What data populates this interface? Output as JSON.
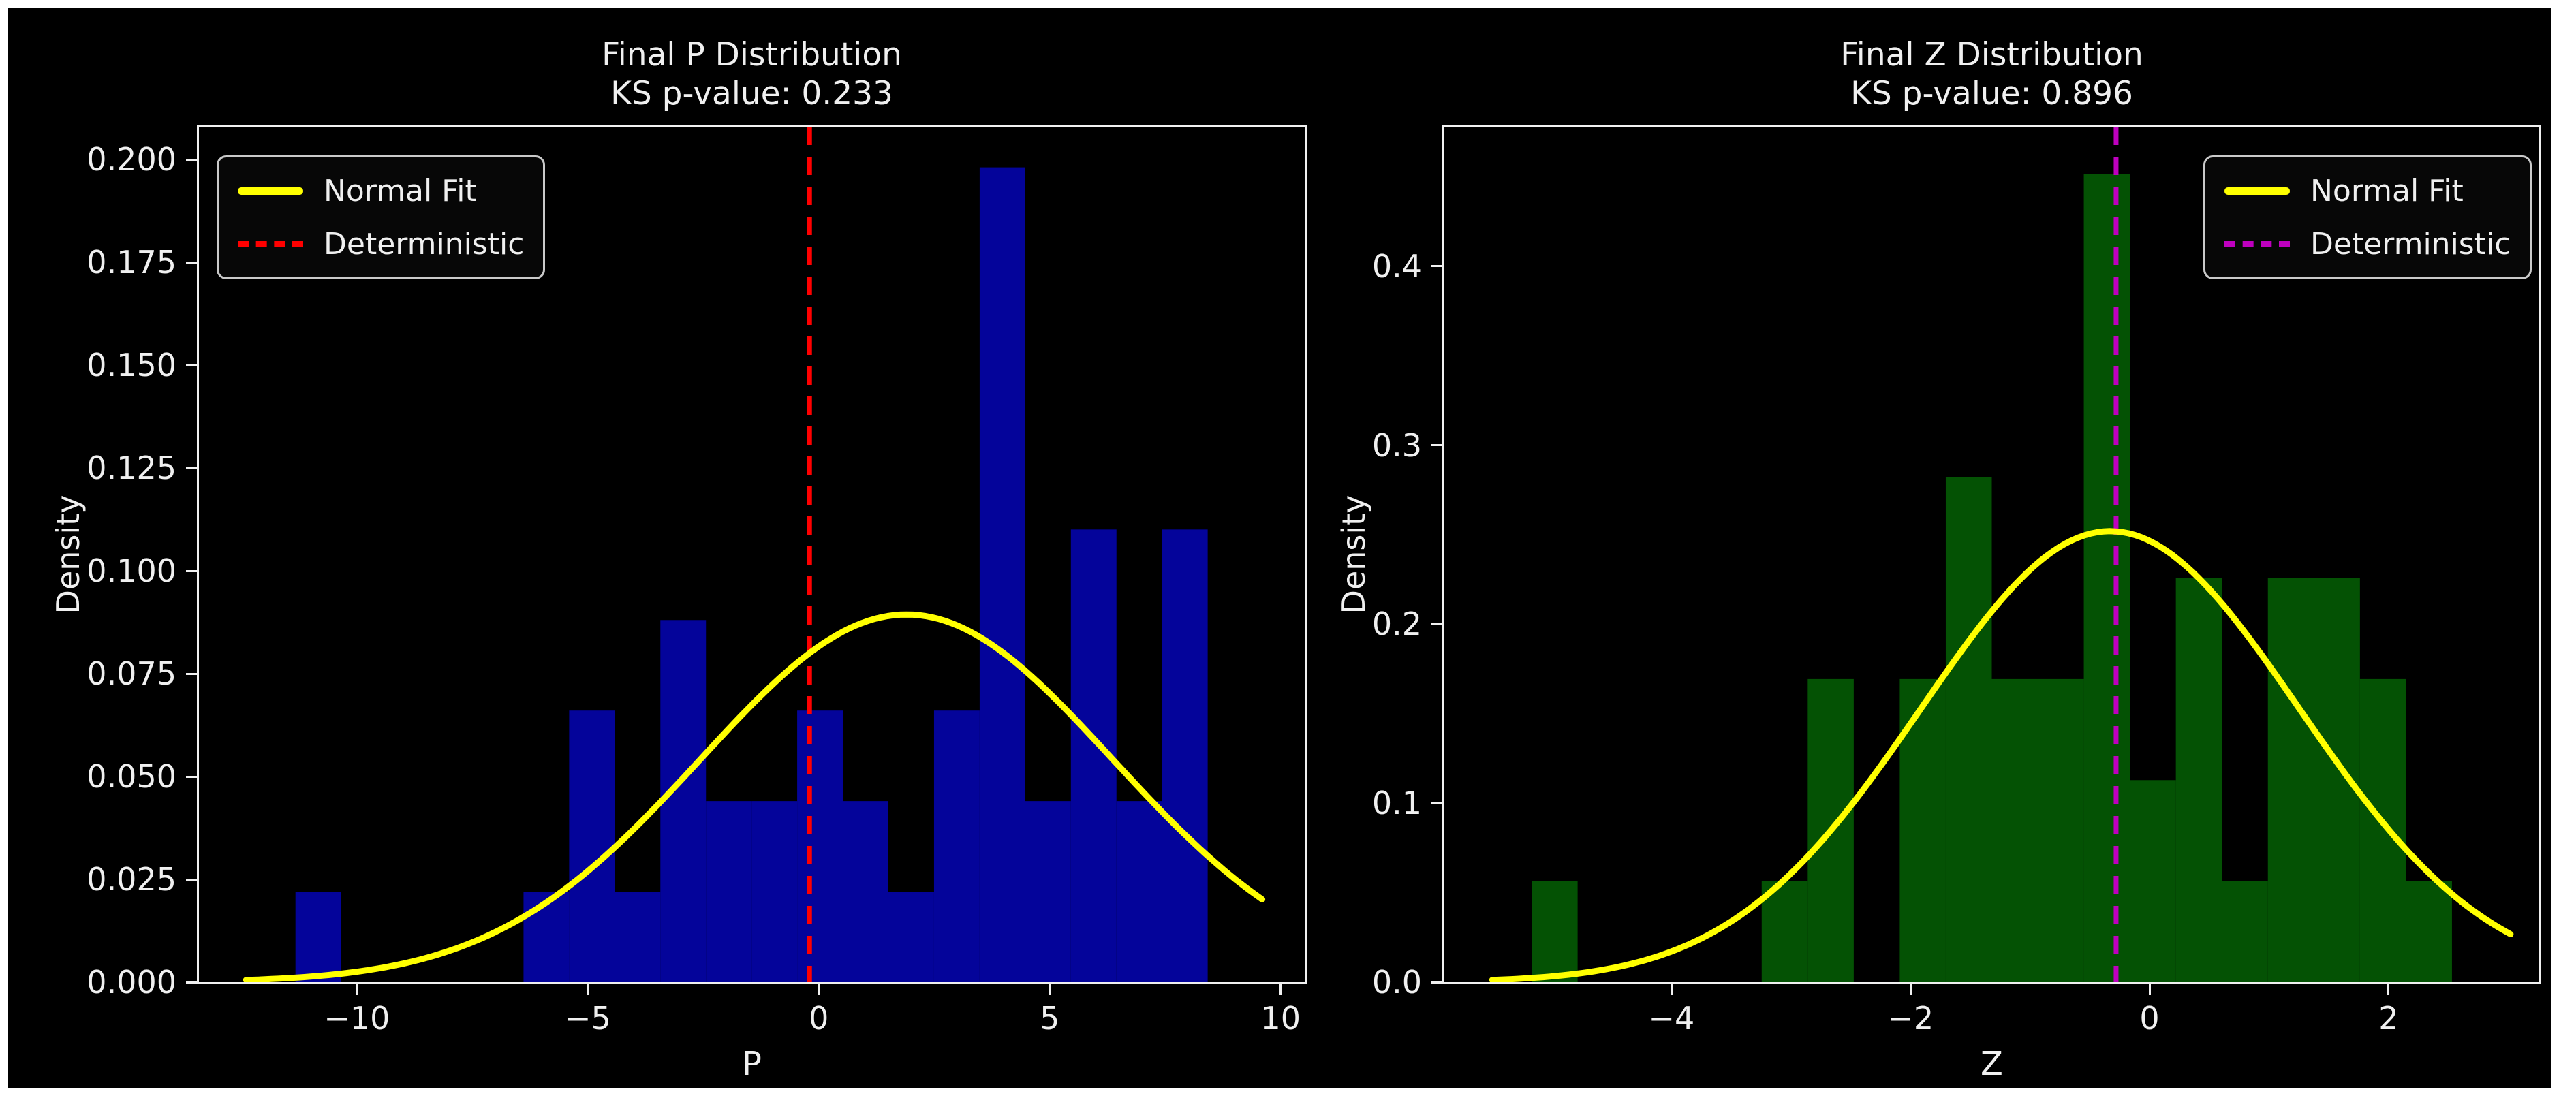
{
  "page": {
    "background": "#ffffff",
    "figure_background": "#000000",
    "text_color": "#f0f0f0"
  },
  "chart_data": [
    {
      "type": "bar",
      "id": "p",
      "title": "Final P Distribution",
      "subtitle": "KS p-value: 0.233",
      "ks_p_value": 0.233,
      "xlabel": "P",
      "ylabel": "Density",
      "xlim": [
        -13.42,
        10.52
      ],
      "ylim": [
        0,
        0.208
      ],
      "xticks": [
        -10,
        -5,
        0,
        5,
        10
      ],
      "xtick_labels": [
        "−10",
        "−5",
        "0",
        "5",
        "10"
      ],
      "yticks": [
        0.0,
        0.025,
        0.05,
        0.075,
        0.1,
        0.125,
        0.15,
        0.175,
        0.2
      ],
      "ytick_labels": [
        "0.000",
        "0.025",
        "0.050",
        "0.075",
        "0.100",
        "0.125",
        "0.150",
        "0.175",
        "0.200"
      ],
      "bar_color": "#04049a",
      "hist": {
        "bin_start": -11.33,
        "bin_width": 0.9875,
        "counts": [
          1,
          0,
          0,
          0,
          0,
          1,
          3,
          1,
          4,
          2,
          2,
          3,
          2,
          1,
          3,
          9,
          2,
          5,
          2,
          5
        ],
        "peak_density": 0.198
      },
      "fit": {
        "label": "Normal Fit",
        "color": "#ffff00",
        "mean": 1.9,
        "sigma": 4.46,
        "peak": 0.0894,
        "x_from": -12.4,
        "x_to": 9.6
      },
      "vline": {
        "label": "Deterministic",
        "color": "#ff0000",
        "x": -0.2
      },
      "legend_position": "upper-left"
    },
    {
      "type": "bar",
      "id": "z",
      "title": "Final Z Distribution",
      "subtitle": "KS p-value: 0.896",
      "ks_p_value": 0.896,
      "xlabel": "Z",
      "ylabel": "Density",
      "xlim": [
        -5.9,
        3.26
      ],
      "ylim": [
        0,
        0.478
      ],
      "xticks": [
        -4,
        -2,
        0,
        2
      ],
      "xtick_labels": [
        "−4",
        "−2",
        "0",
        "2"
      ],
      "yticks": [
        0.0,
        0.1,
        0.2,
        0.3,
        0.4
      ],
      "ytick_labels": [
        "0.0",
        "0.1",
        "0.2",
        "0.3",
        "0.4"
      ],
      "bar_color": "#045204",
      "hist": {
        "bin_start": -5.17,
        "bin_width": 0.385,
        "counts": [
          1,
          0,
          0,
          0,
          0,
          1,
          3,
          0,
          3,
          5,
          3,
          3,
          8,
          2,
          4,
          1,
          4,
          4,
          3,
          1
        ],
        "peak_density": 0.452
      },
      "fit": {
        "label": "Normal Fit",
        "color": "#ffff00",
        "mean": -0.33,
        "sigma": 1.583,
        "peak": 0.252,
        "x_from": -5.5,
        "x_to": 3.02
      },
      "vline": {
        "label": "Deterministic",
        "color": "#bf00bf",
        "x": -0.28
      },
      "legend_position": "upper-right"
    }
  ]
}
